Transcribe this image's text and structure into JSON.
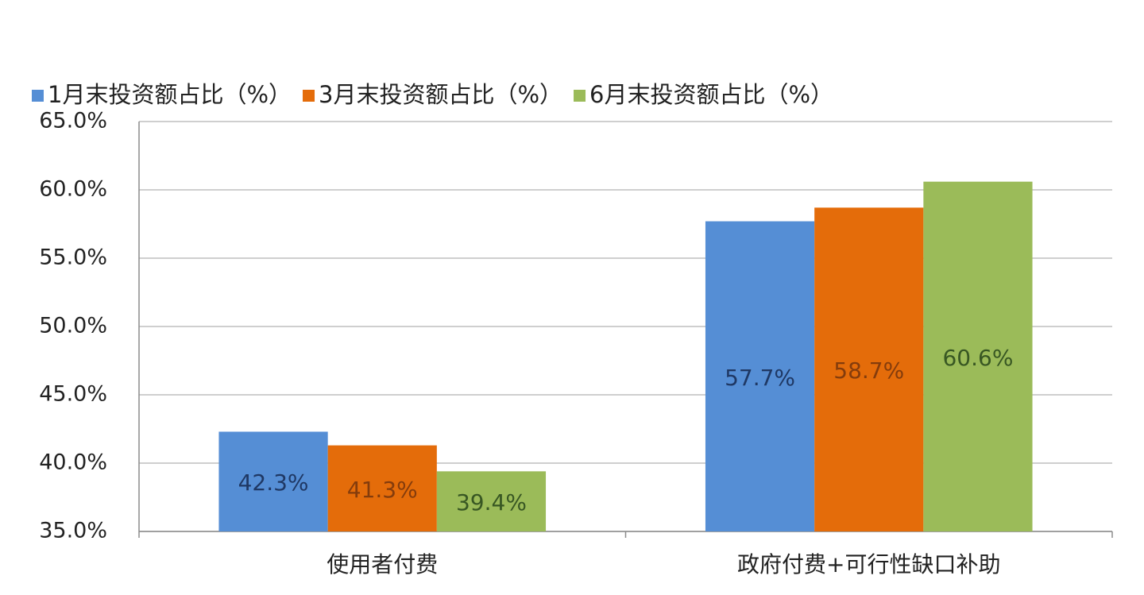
{
  "chart_data": {
    "type": "bar",
    "categories": [
      "使用者付费",
      "政府付费+可行性缺口补助"
    ],
    "series": [
      {
        "name": "1月末投资额占比（%）",
        "color": "#558ed5",
        "label_color": "#1f3864",
        "values": [
          42.3,
          57.7
        ],
        "value_labels": [
          "42.3%",
          "57.7%"
        ]
      },
      {
        "name": "3月末投资额占比（%）",
        "color": "#e46c0a",
        "label_color": "#843c0c",
        "values": [
          41.3,
          58.7
        ],
        "value_labels": [
          "41.3%",
          "58.7%"
        ]
      },
      {
        "name": "6月末投资额占比（%）",
        "color": "#9bbb59",
        "label_color": "#385723",
        "values": [
          39.4,
          60.6
        ],
        "value_labels": [
          "39.4%",
          "60.6%"
        ]
      }
    ],
    "ylim": [
      35,
      65
    ],
    "yticks": [
      {
        "value": 35,
        "label": "35.0%"
      },
      {
        "value": 40,
        "label": "40.0%"
      },
      {
        "value": 45,
        "label": "45.0%"
      },
      {
        "value": 50,
        "label": "50.0%"
      },
      {
        "value": 55,
        "label": "55.0%"
      },
      {
        "value": 60,
        "label": "60.0%"
      },
      {
        "value": 65,
        "label": "65.0%"
      }
    ],
    "grid": true,
    "legend": "top"
  }
}
